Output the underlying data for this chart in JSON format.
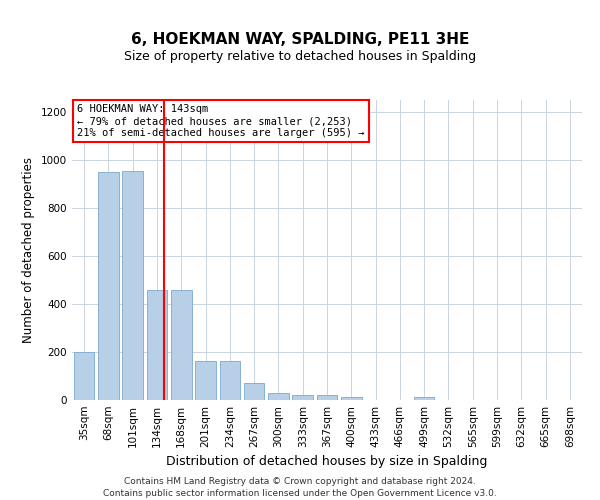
{
  "title": "6, HOEKMAN WAY, SPALDING, PE11 3HE",
  "subtitle": "Size of property relative to detached houses in Spalding",
  "xlabel": "Distribution of detached houses by size in Spalding",
  "ylabel": "Number of detached properties",
  "categories": [
    "35sqm",
    "68sqm",
    "101sqm",
    "134sqm",
    "168sqm",
    "201sqm",
    "234sqm",
    "267sqm",
    "300sqm",
    "333sqm",
    "367sqm",
    "400sqm",
    "433sqm",
    "466sqm",
    "499sqm",
    "532sqm",
    "565sqm",
    "599sqm",
    "632sqm",
    "665sqm",
    "698sqm"
  ],
  "values": [
    200,
    950,
    955,
    460,
    460,
    163,
    163,
    70,
    28,
    22,
    20,
    13,
    0,
    0,
    13,
    0,
    0,
    0,
    0,
    0,
    0
  ],
  "bar_color": "#b8cfe8",
  "bar_edge_color": "#7aaad0",
  "bar_width": 0.85,
  "vline_x": 3.27,
  "vline_color": "red",
  "annotation_text": "6 HOEKMAN WAY: 143sqm\n← 79% of detached houses are smaller (2,253)\n21% of semi-detached houses are larger (595) →",
  "annotation_box_color": "white",
  "annotation_box_edge": "red",
  "ylim": [
    0,
    1250
  ],
  "yticks": [
    0,
    200,
    400,
    600,
    800,
    1000,
    1200
  ],
  "footer": "Contains HM Land Registry data © Crown copyright and database right 2024.\nContains public sector information licensed under the Open Government Licence v3.0.",
  "bg_color": "#ffffff",
  "plot_bg_color": "#ffffff",
  "grid_color": "#c8d4e0",
  "title_fontsize": 11,
  "subtitle_fontsize": 9,
  "ylabel_fontsize": 8.5,
  "xlabel_fontsize": 9,
  "tick_fontsize": 7.5,
  "annotation_fontsize": 7.5,
  "footer_fontsize": 6.5
}
